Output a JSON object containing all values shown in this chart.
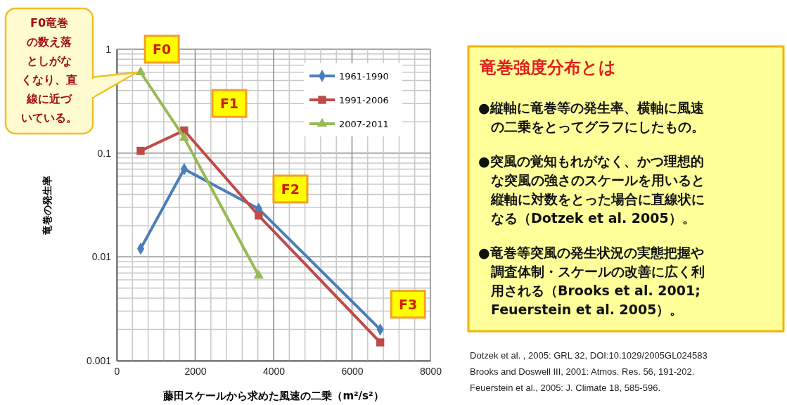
{
  "chart_data": {
    "type": "line",
    "xlabel": "藤田スケールから求めた風速の二乗（m²/s²）",
    "ylabel": "竜巻の発生率",
    "log": "y",
    "grid": true,
    "legend": "top right",
    "line_style": "solid",
    "xlim": [
      0,
      8000
    ],
    "xticks": [
      0,
      {
        "value": 400,
        "label": null
      },
      {
        "value": 800,
        "label": null
      },
      {
        "value": 1200,
        "label": null
      },
      {
        "value": 1600,
        "label": null
      },
      2000,
      {
        "value": 2400,
        "label": null
      },
      {
        "value": 2800,
        "label": null
      },
      {
        "value": 3200,
        "label": null
      },
      {
        "value": 3600,
        "label": null
      },
      4000,
      {
        "value": 4400,
        "label": null
      },
      {
        "value": 4800,
        "label": null
      },
      {
        "value": 5200,
        "label": null
      },
      {
        "value": 5600,
        "label": null
      },
      6000,
      {
        "value": 6400,
        "label": null
      },
      {
        "value": 6800,
        "label": null
      },
      {
        "value": 7200,
        "label": null
      },
      {
        "value": 7600,
        "label": null
      },
      8000
    ],
    "ylim": [
      0.001,
      1
    ],
    "yticks": [
      0.001,
      {
        "value": 0.002,
        "label": null
      },
      {
        "value": 0.003,
        "label": null
      },
      {
        "value": 0.004,
        "label": null
      },
      {
        "value": 0.005,
        "label": null
      },
      {
        "value": 0.006,
        "label": null
      },
      {
        "value": 0.007,
        "label": null
      },
      {
        "value": 0.008,
        "label": null
      },
      {
        "value": 0.009,
        "label": null
      },
      0.01,
      {
        "value": 0.02,
        "label": null
      },
      {
        "value": 0.03,
        "label": null
      },
      {
        "value": 0.04,
        "label": null
      },
      {
        "value": 0.05,
        "label": null
      },
      {
        "value": 0.06,
        "label": null
      },
      {
        "value": 0.07,
        "label": null
      },
      {
        "value": 0.08,
        "label": null
      },
      {
        "value": 0.09,
        "label": null
      },
      0.1,
      {
        "value": 0.2,
        "label": null
      },
      {
        "value": 0.3,
        "label": null
      },
      {
        "value": 0.4,
        "label": null
      },
      {
        "value": 0.5,
        "label": null
      },
      {
        "value": 0.6,
        "label": null
      },
      {
        "value": 0.7,
        "label": null
      },
      {
        "value": 0.8,
        "label": null
      },
      {
        "value": 0.9,
        "label": null
      },
      1
    ],
    "series": [
      {
        "name": "1961-1990",
        "color": "#4a7ebb",
        "marker": "diamond",
        "x": [
          610,
          1720,
          3620,
          6720
        ],
        "values": [
          0.012,
          0.07,
          0.029,
          0.002
        ]
      },
      {
        "name": "1991-2006",
        "color": "#be4b48",
        "marker": "square",
        "x": [
          610,
          1720,
          3620,
          6720
        ],
        "values": [
          0.105,
          0.165,
          0.025,
          0.0015
        ]
      },
      {
        "name": "2007-2011",
        "color": "#98b954",
        "marker": "triangle",
        "x": [
          610,
          1720,
          3620
        ],
        "values": [
          0.6,
          0.14,
          0.0066
        ]
      }
    ],
    "annotations": [
      "F0",
      "F1",
      "F2",
      "F3",
      "F0竜巻の数え落としがなくなり、直線に近づいている。",
      "竜巻強度分布とは",
      "●縦軸に竜巻等の発生率、横軸に風速の二乗をとってグラフにしたもの。",
      "●突風の覚知もれがなく、かつ理想的な突風の強さのスケールを用いると縦軸に対数をとった場合に直線状になる（Dotzek et al. 2005）。",
      "●竜巻等突風の発生状況の実態把握や調査体制・スケールの改善に広く利用される（Brooks et al. 2001; Feuerstein et al. 2005）。",
      "Dotzek et al. , 2005: GRL 32, DOI:10.1029/2005GL024583",
      "Brooks and Doswell III, 2001: Atmos. Res. 56, 191-202.",
      "Feuerstein et al., 2005: J. Climate 18, 585-596."
    ]
  }
}
